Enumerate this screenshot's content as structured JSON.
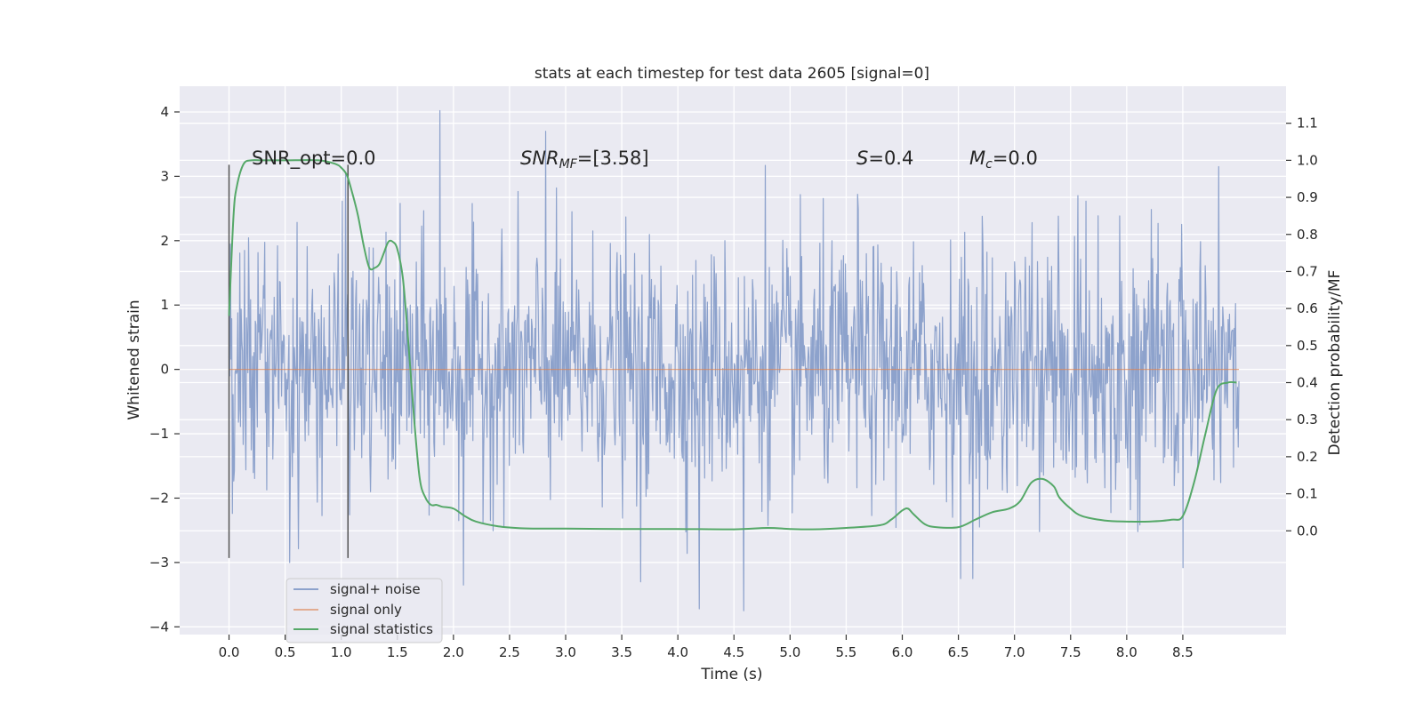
{
  "chart_data": {
    "type": "line",
    "title": "stats at each timestep for test data 2605 [signal=0]",
    "xlabel": "Time (s)",
    "ylabel": "Whitened strain",
    "y2label": "Detection probability/MF",
    "xlim": [
      -0.44,
      9.42
    ],
    "ylim": [
      -4.12,
      4.4
    ],
    "y2lim": [
      -0.28,
      1.2
    ],
    "x_ticks": [
      "0.0",
      "0.5",
      "1.0",
      "1.5",
      "2.0",
      "2.5",
      "3.0",
      "3.5",
      "4.0",
      "4.5",
      "5.0",
      "5.5",
      "6.0",
      "6.5",
      "7.0",
      "7.5",
      "8.0",
      "8.5"
    ],
    "x_tick_values": [
      0.0,
      0.5,
      1.0,
      1.5,
      2.0,
      2.5,
      3.0,
      3.5,
      4.0,
      4.5,
      5.0,
      5.5,
      6.0,
      6.5,
      7.0,
      7.5,
      8.0,
      8.5
    ],
    "y_ticks": [
      "−4",
      "−3",
      "−2",
      "−1",
      "0",
      "1",
      "2",
      "3",
      "4"
    ],
    "y_tick_values": [
      -4,
      -3,
      -2,
      -1,
      0,
      1,
      2,
      3,
      4
    ],
    "y2_ticks": [
      "0.0",
      "0.1",
      "0.2",
      "0.3",
      "0.4",
      "0.5",
      "0.6",
      "0.7",
      "0.8",
      "0.9",
      "1.0",
      "1.1"
    ],
    "y2_tick_values": [
      0.0,
      0.1,
      0.2,
      0.3,
      0.4,
      0.5,
      0.6,
      0.7,
      0.8,
      0.9,
      1.0,
      1.1
    ],
    "grid": true,
    "legend_position": "lower-left",
    "colors": {
      "noise": "#8da2cc",
      "signal": "#dd8452",
      "stats": "#55a868",
      "window": "#555555",
      "plot_bg": "#eaeaf2",
      "grid": "#ffffff"
    },
    "annotations": {
      "snr_opt": "SNR_opt=0.0",
      "snr_mf_base": "SNR",
      "snr_mf_sub": "MF",
      "snr_mf_value": "=[3.58]",
      "s_base": "S",
      "s_value": "=0.4",
      "mc_base": "M",
      "mc_sub": "c",
      "mc_value": "=0.0"
    },
    "window_lines": [
      {
        "x": 0.0,
        "y_range": [
          -2.93,
          3.18
        ]
      },
      {
        "x": 1.06,
        "y_range": [
          -2.93,
          3.18
        ]
      }
    ],
    "series": [
      {
        "name": "signal+ noise",
        "kind": "noise",
        "x_range": [
          0.0,
          9.0
        ],
        "sample_count": 1500,
        "sigma": 0.95,
        "outliers": [
          {
            "x": 1.88,
            "y": 4.02
          },
          {
            "x": 2.82,
            "y": 3.7
          },
          {
            "x": 4.78,
            "y": 3.17
          },
          {
            "x": 8.82,
            "y": 3.15
          },
          {
            "x": 1.04,
            "y": 3.05
          },
          {
            "x": 5.6,
            "y": 2.72
          },
          {
            "x": 2.09,
            "y": -3.35
          },
          {
            "x": 4.59,
            "y": -3.75
          },
          {
            "x": 4.19,
            "y": -3.72
          },
          {
            "x": 6.52,
            "y": -3.25
          },
          {
            "x": 6.63,
            "y": -3.25
          },
          {
            "x": 3.67,
            "y": -3.3
          },
          {
            "x": 0.54,
            "y": -3.0
          },
          {
            "x": 8.5,
            "y": -3.08
          }
        ]
      },
      {
        "name": "signal only",
        "kind": "signal",
        "x": [
          0.0,
          9.0
        ],
        "y": [
          0.0,
          0.0
        ]
      },
      {
        "name": "signal statistics",
        "kind": "stats",
        "axis": "right",
        "x": [
          0.0,
          0.04,
          0.07,
          0.13,
          0.2,
          0.3,
          0.5,
          0.8,
          0.95,
          1.0,
          1.05,
          1.1,
          1.15,
          1.2,
          1.25,
          1.3,
          1.34,
          1.38,
          1.42,
          1.46,
          1.5,
          1.55,
          1.6,
          1.65,
          1.7,
          1.75,
          1.8,
          1.85,
          1.9,
          2.0,
          2.1,
          2.2,
          2.4,
          2.6,
          2.8,
          3.0,
          3.5,
          4.0,
          4.5,
          4.8,
          5.0,
          5.2,
          5.5,
          5.8,
          5.9,
          6.0,
          6.05,
          6.1,
          6.2,
          6.3,
          6.5,
          6.65,
          6.8,
          6.95,
          7.05,
          7.15,
          7.25,
          7.35,
          7.4,
          7.5,
          7.6,
          7.8,
          8.0,
          8.2,
          8.4,
          8.5,
          8.6,
          8.7,
          8.8,
          8.9,
          8.98
        ],
        "y": [
          0.58,
          0.85,
          0.93,
          0.99,
          1.0,
          1.0,
          1.0,
          1.0,
          0.99,
          0.98,
          0.96,
          0.91,
          0.85,
          0.77,
          0.71,
          0.71,
          0.72,
          0.75,
          0.78,
          0.78,
          0.76,
          0.68,
          0.5,
          0.3,
          0.14,
          0.09,
          0.07,
          0.07,
          0.065,
          0.06,
          0.04,
          0.025,
          0.012,
          0.007,
          0.006,
          0.006,
          0.005,
          0.005,
          0.004,
          0.008,
          0.005,
          0.004,
          0.008,
          0.015,
          0.03,
          0.055,
          0.06,
          0.045,
          0.018,
          0.01,
          0.01,
          0.03,
          0.05,
          0.06,
          0.08,
          0.13,
          0.14,
          0.12,
          0.09,
          0.06,
          0.04,
          0.028,
          0.025,
          0.025,
          0.03,
          0.04,
          0.13,
          0.26,
          0.38,
          0.4,
          0.4
        ]
      }
    ]
  }
}
